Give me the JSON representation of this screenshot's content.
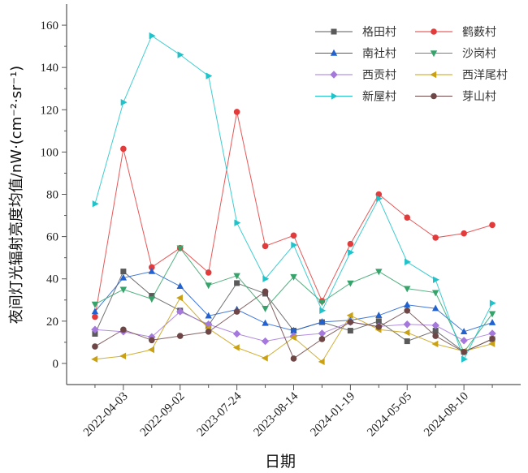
{
  "chart_data": {
    "type": "line",
    "title": "",
    "xlabel": "日期",
    "ylabel": "夜间灯光辐射亮度均值/nW·(cm⁻²·sr⁻¹)",
    "ylim": [
      -10,
      170
    ],
    "xlim": [
      -1,
      15
    ],
    "yticks": [
      0,
      20,
      40,
      60,
      80,
      100,
      120,
      140,
      160
    ],
    "x": [
      0,
      1,
      2,
      3,
      4,
      5,
      6,
      7,
      8,
      9,
      10,
      11,
      12,
      13,
      14
    ],
    "x_tick_labels": [
      {
        "index": 1,
        "label": "2022-04-03"
      },
      {
        "index": 3,
        "label": "2022-09-02"
      },
      {
        "index": 5,
        "label": "2023-07-24"
      },
      {
        "index": 7,
        "label": "2023-08-14"
      },
      {
        "index": 9,
        "label": "2024-01-19"
      },
      {
        "index": 11,
        "label": "2024-05-05"
      },
      {
        "index": 13,
        "label": "2024-08-10"
      }
    ],
    "grid": false,
    "legend_position": "top-right",
    "series": [
      {
        "name": "格田村",
        "color": "#5a5a5a",
        "marker": "square",
        "values": [
          14,
          43.5,
          32,
          25,
          18,
          38,
          33,
          15.5,
          19.5,
          15.5,
          20,
          10.5,
          15.5,
          5.5,
          11.5
        ]
      },
      {
        "name": "鹤薮村",
        "color": "#e23b3b",
        "marker": "circle",
        "values": [
          22,
          101.5,
          45.5,
          54.6,
          43,
          119,
          55.5,
          60.5,
          29.5,
          56.5,
          80,
          69,
          59.5,
          61.5,
          65.5
        ]
      },
      {
        "name": "南社村",
        "color": "#2162d0",
        "marker": "triangle-up",
        "values": [
          24.5,
          40.5,
          43.5,
          36.5,
          22.5,
          25.5,
          19,
          15.5,
          19.6,
          20.4,
          22.7,
          27.7,
          26,
          15,
          19.3
        ]
      },
      {
        "name": "沙岗村",
        "color": "#35a36a",
        "marker": "triangle-down",
        "values": [
          28,
          35,
          30.5,
          54.6,
          37,
          41.5,
          26,
          41,
          29,
          38,
          43.5,
          35.4,
          33.5,
          5.4,
          23.5
        ]
      },
      {
        "name": "西贡村",
        "color": "#a578dc",
        "marker": "diamond",
        "values": [
          16,
          15,
          12.5,
          24.5,
          18.5,
          14,
          10.5,
          13,
          14.2,
          19.6,
          17.5,
          18.5,
          18,
          10.8,
          14.2
        ]
      },
      {
        "name": "西洋尾村",
        "color": "#c9a113",
        "marker": "triangle-left",
        "values": [
          2,
          3.5,
          6.5,
          31,
          16.5,
          7.5,
          2.5,
          12.3,
          0.8,
          22.7,
          16,
          14.6,
          9.2,
          5.8,
          9.3
        ]
      },
      {
        "name": "新屋村",
        "color": "#1fc3c9",
        "marker": "triangle-right",
        "values": [
          75.5,
          123.5,
          155,
          146,
          136,
          66.5,
          40,
          56,
          25,
          52.5,
          78,
          48,
          39.6,
          2,
          28.5
        ]
      },
      {
        "name": "芽山村",
        "color": "#6e4646",
        "marker": "circle",
        "values": [
          8,
          16,
          11,
          13,
          15,
          24.5,
          34,
          2.3,
          11.5,
          19.6,
          17.3,
          25,
          13,
          5.4,
          11.6
        ]
      }
    ]
  }
}
